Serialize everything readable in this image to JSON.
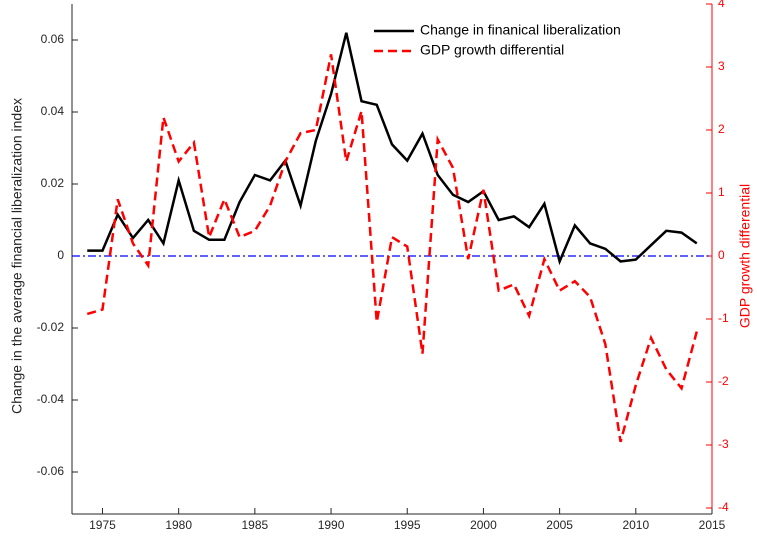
{
  "chart_data": {
    "type": "line",
    "y_label": "Change in the average financial liberalization index",
    "y2_label": "GDP growth differential",
    "x": [
      1974,
      1975,
      1976,
      1977,
      1978,
      1979,
      1980,
      1981,
      1982,
      1983,
      1984,
      1985,
      1986,
      1987,
      1988,
      1989,
      1990,
      1991,
      1992,
      1993,
      1994,
      1995,
      1996,
      1997,
      1998,
      1999,
      2000,
      2001,
      2002,
      2003,
      2004,
      2005,
      2006,
      2007,
      2008,
      2009,
      2010,
      2011,
      2012,
      2013,
      2014
    ],
    "series": [
      {
        "name": "Change in finanical liberalization",
        "color": "#000000",
        "dash": "solid",
        "axis": "y",
        "values": [
          0.0015,
          0.0015,
          0.0115,
          0.005,
          0.01,
          0.0035,
          0.021,
          0.007,
          0.0045,
          0.0045,
          0.015,
          0.0225,
          0.021,
          0.0265,
          0.014,
          0.032,
          0.045,
          0.062,
          0.043,
          0.042,
          0.031,
          0.0265,
          0.034,
          0.0225,
          0.017,
          0.015,
          0.018,
          0.01,
          0.011,
          0.008,
          0.0145,
          -0.0015,
          0.0085,
          0.0035,
          0.002,
          -0.0015,
          -0.001,
          0.003,
          0.007,
          0.0065,
          0.0035
        ]
      },
      {
        "name": "GDP growth differential",
        "color": "#ff0000",
        "dash": "dashed",
        "axis": "y2",
        "values": [
          -0.92,
          -0.85,
          0.9,
          0.2,
          -0.15,
          2.2,
          1.5,
          1.8,
          0.3,
          0.9,
          0.3,
          0.4,
          0.8,
          1.5,
          1.95,
          2.0,
          3.2,
          1.5,
          2.3,
          -1.05,
          0.3,
          0.15,
          -1.55,
          1.85,
          1.4,
          -0.05,
          1.05,
          -0.55,
          -0.45,
          -0.95,
          -0.05,
          -0.55,
          -0.4,
          -0.65,
          -1.4,
          -2.95,
          -2.05,
          -1.3,
          -1.8,
          -2.1,
          -1.2
        ]
      }
    ],
    "xlim": [
      1973,
      2015
    ],
    "xticks": [
      1975,
      1980,
      1985,
      1990,
      1995,
      2000,
      2005,
      2010,
      2015
    ],
    "ylim": [
      -0.07,
      0.07
    ],
    "yticks": [
      -0.06,
      -0.04,
      -0.02,
      0,
      0.02,
      0.04,
      0.06
    ],
    "y2lim": [
      -4,
      4
    ],
    "y2ticks": [
      -4,
      -3,
      -2,
      -1,
      0,
      1,
      2,
      3,
      4
    ],
    "y2_color": "#ff0000",
    "reference_line": {
      "value": 0,
      "color": "#0000ff"
    },
    "legend": "upper right"
  }
}
